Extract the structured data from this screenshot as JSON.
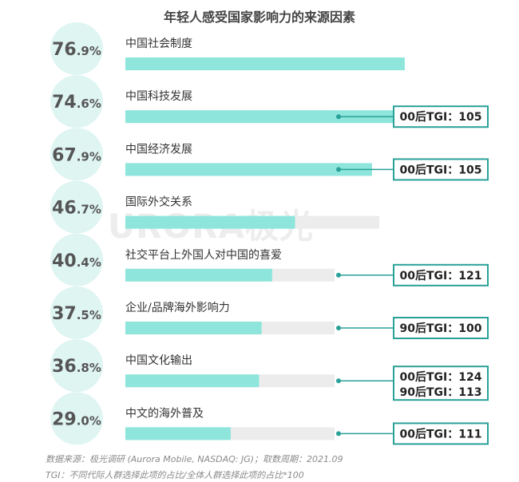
{
  "chart_data": {
    "type": "bar",
    "orientation": "horizontal",
    "title": "年轻人感受国家影响力的来源因素",
    "categories": [
      "中国社会制度",
      "中国科技发展",
      "中国经济发展",
      "国际外交关系",
      "社交平台上外国人对中国的喜爱",
      "企业/品牌海外影响力",
      "中国文化输出",
      "中文的海外普及"
    ],
    "values": [
      76.9,
      74.6,
      67.9,
      46.7,
      40.4,
      37.5,
      36.8,
      29.0
    ],
    "value_labels": [
      {
        "big": "76",
        "small": ".9%"
      },
      {
        "big": "74",
        "small": ".6%"
      },
      {
        "big": "67",
        "small": ".9%"
      },
      {
        "big": "46",
        "small": ".7%"
      },
      {
        "big": "40",
        "small": ".4%"
      },
      {
        "big": "37",
        "small": ".5%"
      },
      {
        "big": "36",
        "small": ".8%"
      },
      {
        "big": "29",
        "small": ".0%"
      }
    ],
    "xlim": [
      0,
      100
    ],
    "tgi_annotations": [
      [],
      [
        "00后TGI：105"
      ],
      [
        "00后TGI：105"
      ],
      [],
      [
        "00后TGI：121"
      ],
      [
        "90后TGI：100"
      ],
      [
        "00后TGI：124",
        "90后TGI：113"
      ],
      [
        "00后TGI：111"
      ]
    ],
    "colors": {
      "bar": "#8ee5dc",
      "track": "#ececec",
      "circle": "#dff5f2",
      "accent": "#2aa198",
      "value_text": "#555555"
    }
  },
  "watermark": "URORA极光",
  "footnotes": {
    "source": "数据来源：极光调研 (Aurora Mobile, NASDAQ: JG)；取数周期：2021.09",
    "tgi": "TGI：不同代际人群选择此项的占比/全体人群选择此项的占比*100"
  }
}
